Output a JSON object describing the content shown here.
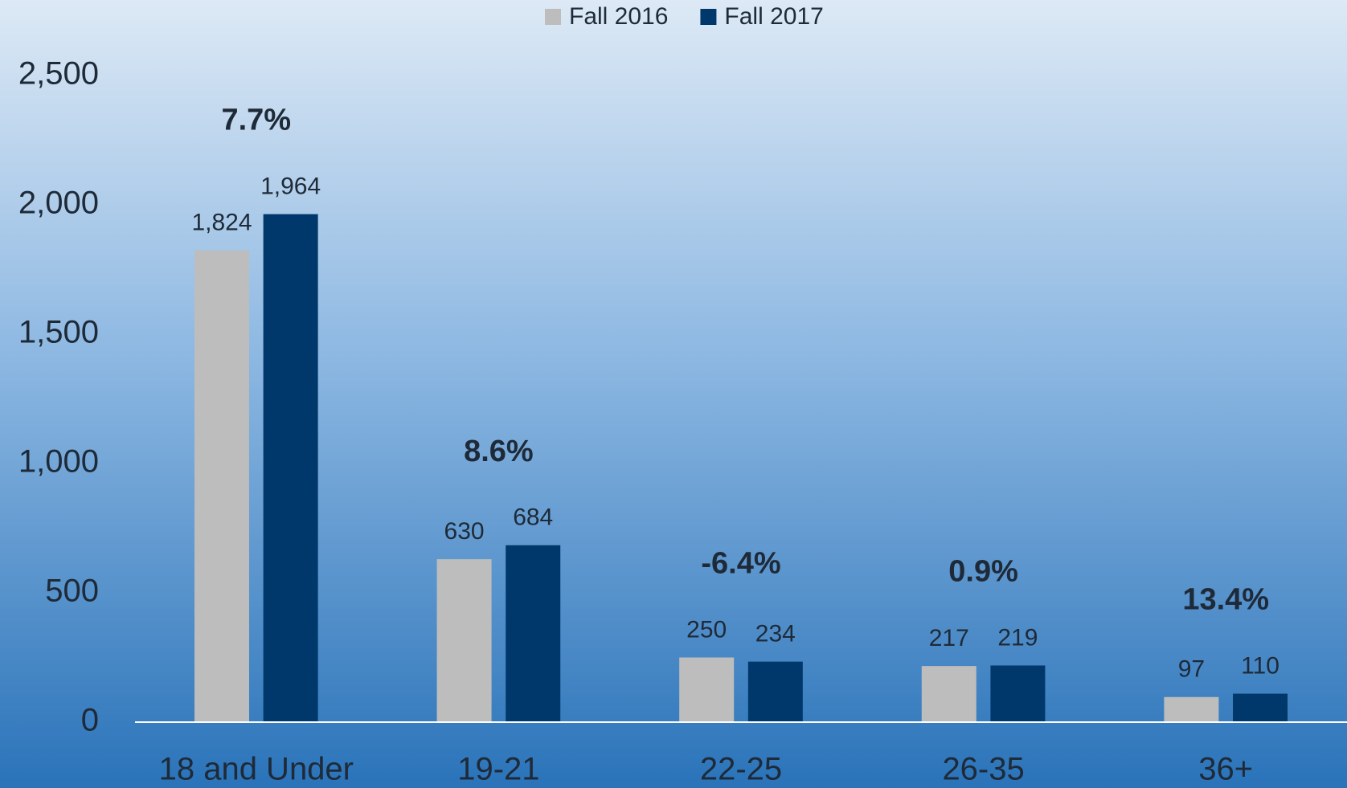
{
  "chart_data": {
    "type": "bar",
    "categories": [
      "18 and Under",
      "19-21",
      "22-25",
      "26-35",
      "36+"
    ],
    "series": [
      {
        "name": "Fall 2016",
        "color": "#bdbdbd",
        "values": [
          1824,
          630,
          250,
          217,
          97
        ],
        "value_labels": [
          "1,824",
          "630",
          "250",
          "217",
          "97"
        ]
      },
      {
        "name": "Fall 2017",
        "color": "#00386b",
        "values": [
          1964,
          684,
          234,
          219,
          110
        ],
        "value_labels": [
          "1,964",
          "684",
          "234",
          "219",
          "110"
        ]
      }
    ],
    "annotations": [
      "7.7%",
      "8.6%",
      "-6.4%",
      "0.9%",
      "13.4%"
    ],
    "ylim": [
      0,
      2500
    ],
    "yticks": [
      0,
      500,
      {
        "value": 1000,
        "label": "1,000"
      },
      {
        "value": 1500,
        "label": "1,500"
      },
      {
        "value": 2000,
        "label": "2,000"
      },
      {
        "value": 2500,
        "label": "2,500"
      }
    ],
    "grid": false,
    "legend": "top"
  }
}
